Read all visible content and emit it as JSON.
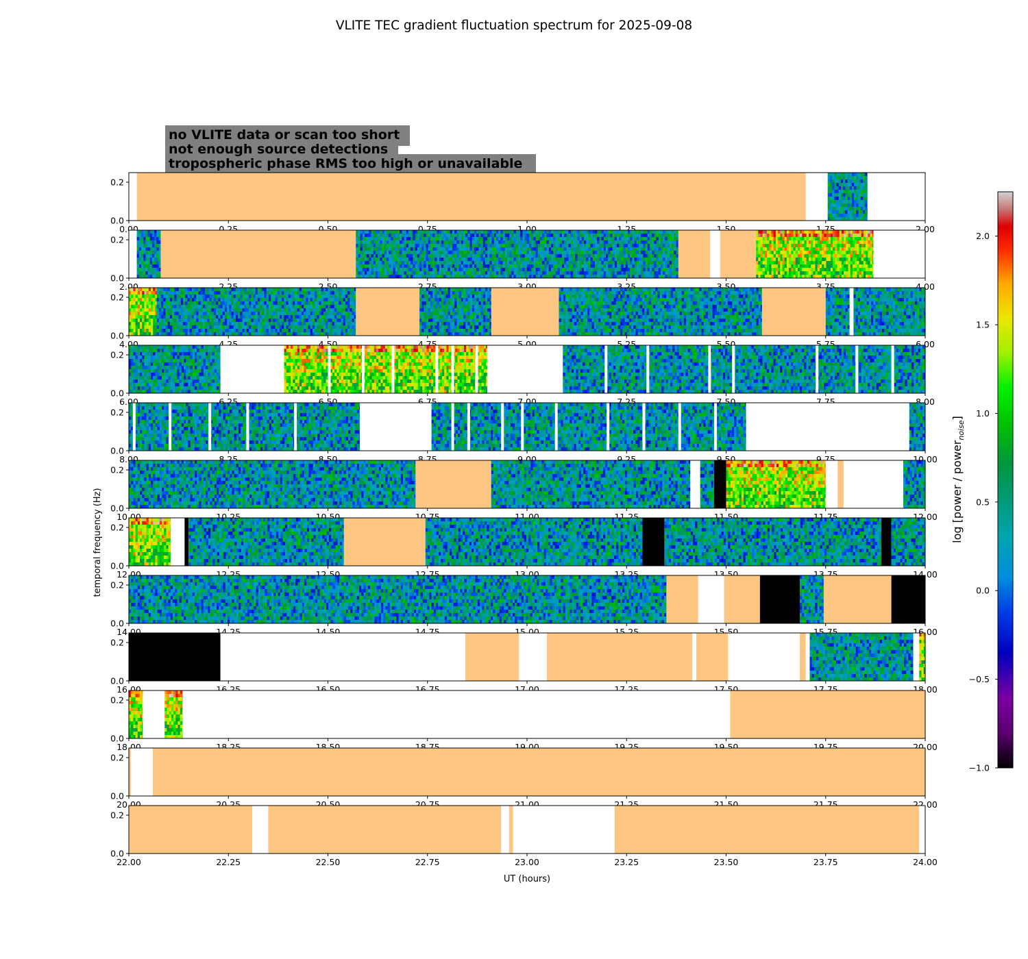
{
  "chart_data": {
    "type": "heatmap",
    "title": "VLITE TEC gradient fluctuation spectrum for 2025-09-08",
    "xlabel": "UT (hours)",
    "ylabel": "temporal frequency (Hz)",
    "ylim": [
      0,
      0.25
    ],
    "yticks": [
      0.0,
      0.2
    ],
    "colorbar": {
      "label": "log [power / power",
      "label_sub": "noise",
      "label_end": "]",
      "range": [
        -1.0,
        2.25
      ],
      "ticks": [
        -1.0,
        -0.5,
        0.0,
        0.5,
        1.0,
        1.5,
        2.0
      ]
    },
    "legend": [
      {
        "text": "no VLITE data or scan too short",
        "color": "#ffffff"
      },
      {
        "text": "not enough source detections",
        "color": "#000000"
      },
      {
        "text": "tropospheric phase RMS too high or unavailable",
        "color": "#fdc682"
      }
    ],
    "panels": [
      {
        "range": [
          0,
          2
        ],
        "segments": [
          [
            0,
            0.02,
            "nodata"
          ],
          [
            0.02,
            1.7,
            "trop"
          ],
          [
            1.7,
            1.755,
            "nodata"
          ],
          [
            1.755,
            1.855,
            "data"
          ],
          [
            1.855,
            2.0,
            "nodata"
          ]
        ]
      },
      {
        "range": [
          2,
          4
        ],
        "segments": [
          [
            2,
            2.02,
            "nodata"
          ],
          [
            2.02,
            2.08,
            "data"
          ],
          [
            2.08,
            2.57,
            "trop"
          ],
          [
            2.57,
            3.38,
            "data"
          ],
          [
            3.38,
            3.46,
            "trop"
          ],
          [
            3.46,
            3.485,
            "nodata"
          ],
          [
            3.485,
            3.575,
            "trop"
          ],
          [
            3.575,
            3.87,
            "active"
          ],
          [
            3.87,
            4.0,
            "nodata"
          ]
        ]
      },
      {
        "range": [
          4,
          6
        ],
        "segments": [
          [
            4,
            4.07,
            "active"
          ],
          [
            4.07,
            4.57,
            "data"
          ],
          [
            4.57,
            4.73,
            "trop"
          ],
          [
            4.73,
            4.91,
            "data"
          ],
          [
            4.91,
            5.08,
            "trop"
          ],
          [
            5.08,
            5.59,
            "data"
          ],
          [
            5.59,
            5.75,
            "trop"
          ],
          [
            5.75,
            5.81,
            "data"
          ],
          [
            5.81,
            5.82,
            "nodata"
          ],
          [
            5.82,
            6.0,
            "data"
          ]
        ]
      },
      {
        "range": [
          6,
          8
        ],
        "segments": [
          [
            6,
            6.23,
            "data"
          ],
          [
            6.23,
            6.39,
            "nodata"
          ],
          [
            6.39,
            6.9,
            "active"
          ],
          [
            6.9,
            7.09,
            "nodata"
          ],
          [
            7.09,
            8.0,
            "data"
          ]
        ],
        "gaps": [
          6.5,
          6.56,
          6.585,
          6.6,
          6.66,
          6.695,
          6.77,
          6.78,
          6.81,
          6.84,
          6.87,
          7.165,
          7.195,
          7.225,
          7.3,
          7.32,
          7.455,
          7.485,
          7.515,
          7.68,
          7.725,
          7.745,
          7.825,
          7.845,
          7.915,
          7.945,
          7.985
        ]
      },
      {
        "range": [
          8,
          10
        ],
        "segments": [
          [
            8,
            8.58,
            "data"
          ],
          [
            8.58,
            8.76,
            "nodata"
          ],
          [
            8.76,
            9.55,
            "data"
          ],
          [
            9.55,
            9.96,
            "nodata"
          ],
          [
            9.96,
            10.0,
            "data"
          ]
        ],
        "gaps": [
          8.01,
          8.025,
          8.1,
          8.125,
          8.2,
          8.225,
          8.295,
          8.31,
          8.415,
          8.43,
          8.81,
          8.83,
          8.85,
          8.905,
          8.935,
          8.965,
          8.985,
          9.025,
          9.07,
          9.11,
          9.2,
          9.26,
          9.29,
          9.33,
          9.38,
          9.42,
          9.47,
          9.51
        ]
      },
      {
        "range": [
          10,
          12
        ],
        "segments": [
          [
            10,
            10.72,
            "data"
          ],
          [
            10.72,
            10.91,
            "trop"
          ],
          [
            10.91,
            11.41,
            "data"
          ],
          [
            11.41,
            11.435,
            "nodata"
          ],
          [
            11.435,
            11.47,
            "data"
          ],
          [
            11.47,
            11.5,
            "black"
          ],
          [
            11.5,
            11.75,
            "active"
          ],
          [
            11.75,
            11.78,
            "nodata"
          ],
          [
            11.78,
            11.795,
            "trop"
          ],
          [
            11.795,
            11.945,
            "nodata"
          ],
          [
            11.945,
            12.0,
            "data"
          ]
        ]
      },
      {
        "range": [
          12,
          14
        ],
        "segments": [
          [
            12,
            12.105,
            "active"
          ],
          [
            12.105,
            12.14,
            "nodata"
          ],
          [
            12.14,
            12.15,
            "black"
          ],
          [
            12.15,
            12.54,
            "data"
          ],
          [
            12.54,
            12.745,
            "trop"
          ],
          [
            12.745,
            13.29,
            "data"
          ],
          [
            13.29,
            13.345,
            "black"
          ],
          [
            13.345,
            13.89,
            "data"
          ],
          [
            13.89,
            13.915,
            "black"
          ],
          [
            13.915,
            14.0,
            "data"
          ]
        ]
      },
      {
        "range": [
          14,
          16
        ],
        "segments": [
          [
            14,
            15.35,
            "data"
          ],
          [
            15.35,
            15.43,
            "trop"
          ],
          [
            15.43,
            15.495,
            "nodata"
          ],
          [
            15.495,
            15.585,
            "trop"
          ],
          [
            15.585,
            15.685,
            "black"
          ],
          [
            15.685,
            15.745,
            "data"
          ],
          [
            15.745,
            15.915,
            "trop"
          ],
          [
            15.915,
            16.0,
            "black"
          ]
        ]
      },
      {
        "range": [
          16,
          18
        ],
        "segments": [
          [
            16,
            16.23,
            "black"
          ],
          [
            16.23,
            16.845,
            "nodata"
          ],
          [
            16.845,
            16.98,
            "trop"
          ],
          [
            16.98,
            17.05,
            "nodata"
          ],
          [
            17.05,
            17.415,
            "trop"
          ],
          [
            17.415,
            17.425,
            "nodata"
          ],
          [
            17.425,
            17.505,
            "trop"
          ],
          [
            17.505,
            17.685,
            "nodata"
          ],
          [
            17.685,
            17.7,
            "trop"
          ],
          [
            17.7,
            17.71,
            "nodata"
          ],
          [
            17.71,
            17.97,
            "data"
          ],
          [
            17.97,
            17.985,
            "nodata"
          ],
          [
            17.985,
            18.0,
            "active"
          ]
        ]
      },
      {
        "range": [
          18,
          20
        ],
        "segments": [
          [
            18,
            18.035,
            "active"
          ],
          [
            18.035,
            18.09,
            "nodata"
          ],
          [
            18.09,
            18.135,
            "active"
          ],
          [
            18.135,
            19.51,
            "nodata"
          ],
          [
            19.51,
            20.0,
            "trop"
          ]
        ]
      },
      {
        "range": [
          20,
          22
        ],
        "segments": [
          [
            20,
            20.005,
            "trop"
          ],
          [
            20.005,
            20.06,
            "nodata"
          ],
          [
            20.06,
            22.0,
            "trop"
          ]
        ]
      },
      {
        "range": [
          22,
          24
        ],
        "segments": [
          [
            22,
            22.31,
            "trop"
          ],
          [
            22.31,
            22.35,
            "nodata"
          ],
          [
            22.35,
            22.935,
            "trop"
          ],
          [
            22.935,
            22.955,
            "nodata"
          ],
          [
            22.955,
            22.965,
            "trop"
          ],
          [
            22.965,
            23.22,
            "nodata"
          ],
          [
            23.22,
            23.985,
            "trop"
          ],
          [
            23.985,
            24.0,
            "nodata"
          ]
        ]
      }
    ]
  }
}
